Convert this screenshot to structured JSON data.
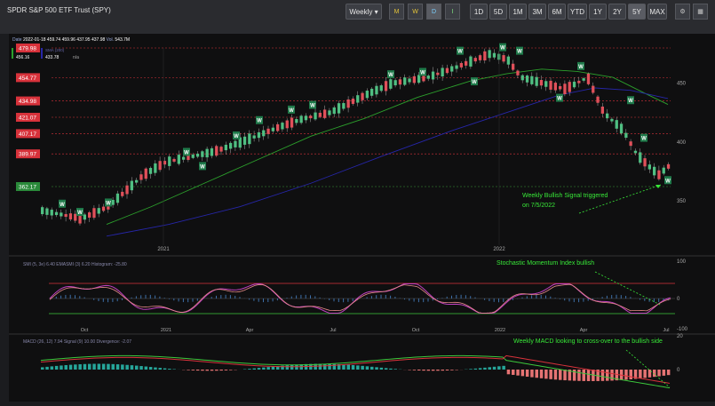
{
  "window": {
    "title": "SPDR S&P 500 ETF Trust (SPY)"
  },
  "toolbar": {
    "interval": "Weekly",
    "interval_caret": "▾",
    "range_buttons": [
      "1D",
      "5D",
      "1M",
      "3M",
      "6M",
      "YTD",
      "1Y",
      "2Y",
      "5Y",
      "MAX"
    ],
    "active_range": "5Y",
    "icon_glyphs": [
      "M",
      "W",
      "D",
      "I"
    ],
    "gear_glyph": "⚙",
    "grid_glyph": "▦"
  },
  "info": {
    "date_label": "Date",
    "date": "2022-01-18",
    "o": "459.74",
    "h": "459.96",
    "l": "437.95",
    "c": "437.98",
    "vol_label": "Vol.",
    "vol": "543.7M",
    "sma50_label": "SMA (50)",
    "sma50_val": "456.16",
    "sma200_label": "SMA (200)",
    "sma200_val": "433.78",
    "sma200_extra": "n/a"
  },
  "price_levels": [
    "479.98",
    "454.77",
    "434.98",
    "421.07",
    "407.17",
    "389.97",
    "362.17"
  ],
  "price_axis": [
    "450",
    "400",
    "350"
  ],
  "year_labels": [
    "2021",
    "2022"
  ],
  "annotations": {
    "bullish": "Weekly Bullish Signal triggered",
    "bullish_date": "on 7/5/2022",
    "smi": "Stochastic Momentum Index bullish",
    "macd": "Weekly MACD looking to cross-over to the bullish side"
  },
  "signal_badge": "W",
  "smi_panel": {
    "label": "SMI (5, 3e) 6.40 EMASMI (3) 6.20 Histogram: -25.80",
    "axis": [
      "100",
      "0",
      "-100"
    ],
    "months": [
      "Oct",
      "2021",
      "Apr",
      "Jul",
      "Oct",
      "2022",
      "Apr",
      "Jul"
    ]
  },
  "macd_panel": {
    "label": "MACD (26, 12) 7.94 Signal (9) 10.00 Divergence: -2.07",
    "axis": [
      "20",
      "0"
    ]
  },
  "colors": {
    "up": "#4fbf82",
    "down": "#e0505a",
    "level": "#d8323b",
    "sma50": "#2ca02c",
    "sma200": "#2626a8",
    "annotation": "#38e838"
  }
}
